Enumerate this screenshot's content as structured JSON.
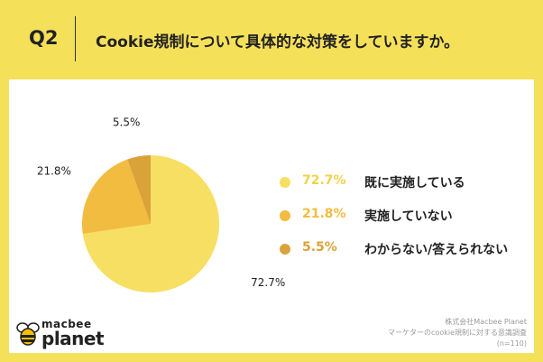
{
  "header": {
    "question_number": "Q2",
    "question": "Cookie規制について具体的な対策をしていますか。"
  },
  "colors": {
    "background": "#f5e05a",
    "slice_1": "#f7df63",
    "slice_2": "#f1bc3f",
    "slice_3": "#d9a33a"
  },
  "chart_data": {
    "type": "pie",
    "categories": [
      "既に実施している",
      "実施していない",
      "わからない/答えられない"
    ],
    "values": [
      72.7,
      21.8,
      5.5
    ],
    "value_labels": [
      "72.7%",
      "21.8%",
      "5.5%"
    ],
    "title": "",
    "legend": "right"
  },
  "legend": [
    {
      "pct": "72.7%",
      "label": "既に実施している"
    },
    {
      "pct": "21.8%",
      "label": "実施していない"
    },
    {
      "pct": "5.5%",
      "label": "わからない/答えられない"
    }
  ],
  "logo": {
    "top": "macbee",
    "bottom": "planet",
    "icon": "bee-icon"
  },
  "source": {
    "line1": "株式会社Macbee Planet",
    "line2": "マーケターのcookie規制に対する意識調査",
    "line3": "(n=110)"
  }
}
